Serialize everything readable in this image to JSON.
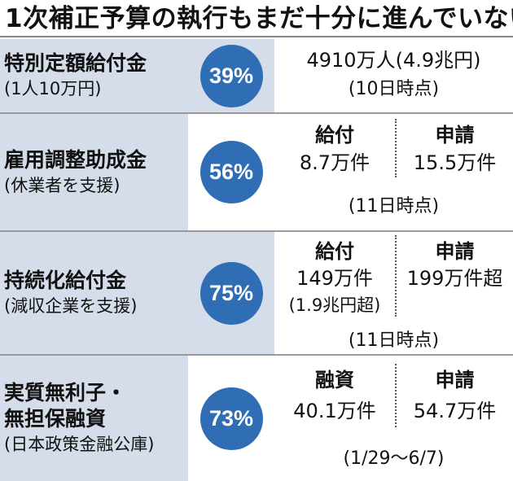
{
  "title": "1次補正予算の執行もまだ十分に進んでいない",
  "colors": {
    "circle": "#2f6db5",
    "label_bg": "#d4dde9"
  },
  "rows": [
    {
      "name": "特別定額給付金",
      "sub": "(1人10万円)",
      "percent": "39%",
      "amount_line1": "4910万人(4.9兆円)",
      "amount_line2": "(10日時点)"
    },
    {
      "name": "雇用調整助成金",
      "sub": "(休業者を支援)",
      "percent": "56%",
      "left_label": "給付",
      "left_value": "8.7万件",
      "right_label": "申請",
      "right_value": "15.5万件",
      "note": "(11日時点)"
    },
    {
      "name": "持続化給付金",
      "sub": "(減収企業を支援)",
      "percent": "75%",
      "left_label": "給付",
      "left_value": "149万件",
      "left_value2": "(1.9兆円超)",
      "right_label": "申請",
      "right_value": "199万件超",
      "note": "(11日時点)"
    },
    {
      "name": "実質無利子・",
      "name2": "無担保融資",
      "sub": "(日本政策金融公庫)",
      "percent": "73%",
      "left_label": "融資",
      "left_value": "40.1万件",
      "right_label": "申請",
      "right_value": "54.7万件",
      "note": "(1/29〜6/7)"
    }
  ]
}
